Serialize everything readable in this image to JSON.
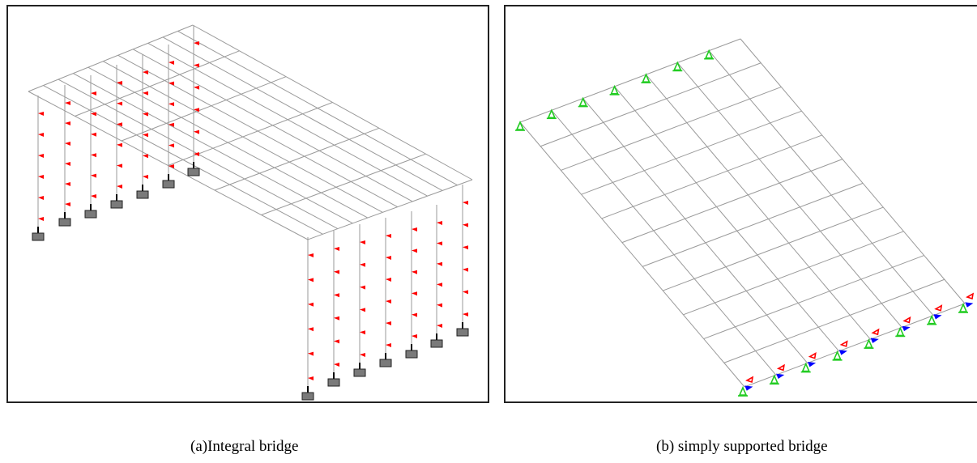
{
  "figures": [
    {
      "caption": "(a)Integral bridge",
      "type": "integral-bridge-model",
      "elements": [
        "deck-grid",
        "abutment-piles",
        "pile-springs",
        "pile-caps"
      ],
      "colors": {
        "grid": "#9a9a9a",
        "spring": "#ff0000",
        "cap": "#7a7a7a"
      }
    },
    {
      "caption": "(b) simply supported bridge",
      "type": "simply-supported-bridge-model",
      "elements": [
        "deck-grid",
        "pin-supports",
        "roller-supports"
      ],
      "colors": {
        "grid": "#9a9a9a",
        "support_green": "#22cc22",
        "support_blue": "#0000ff",
        "support_red": "#ff0000"
      }
    }
  ]
}
